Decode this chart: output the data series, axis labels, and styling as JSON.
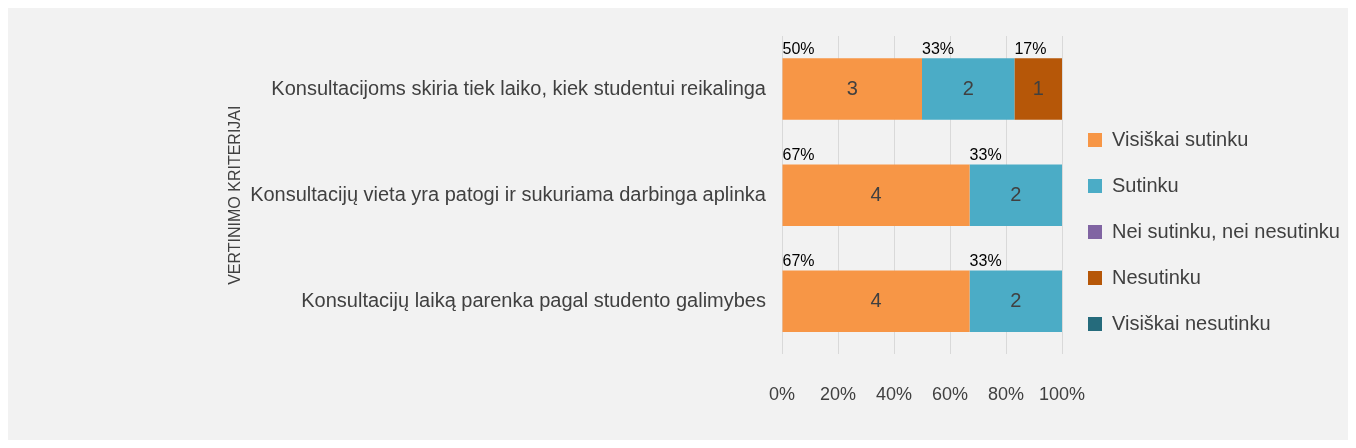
{
  "chart_data": {
    "type": "bar",
    "orientation": "horizontal",
    "stacked": true,
    "ylabel": "VERTINIMO KRITERIJAI",
    "categories": [
      "Konsultacijoms skiria tiek laiko, kiek studentui reikalinga",
      "Konsultacijų vieta yra patogi ir sukuriama darbinga aplinka",
      "Konsultacijų laiką parenka pagal studento galimybes"
    ],
    "series": [
      {
        "name": "Visiškai sutinku",
        "color": "#f79646",
        "values": [
          50,
          67,
          67
        ],
        "value_labels": [
          "50%",
          "67%",
          "67%"
        ]
      },
      {
        "name": "Sutinku",
        "color": "#4bacc6",
        "values": [
          33,
          33,
          33
        ],
        "value_labels": [
          "33%",
          "33%",
          "33%"
        ]
      },
      {
        "name": "Nei sutinku, nei nesutinku",
        "color": "#8064a2",
        "values": [
          null,
          null,
          null
        ]
      },
      {
        "name": "Nesutinku",
        "color": "#b65708",
        "values": [
          17,
          null,
          null
        ],
        "value_labels": [
          "17%",
          null,
          null
        ]
      },
      {
        "name": "Visiškai nesutinku",
        "color": "#256b7c",
        "values": [
          null,
          null,
          null
        ]
      }
    ],
    "xlim": [
      0,
      100
    ],
    "xticks": [
      {
        "value": 0,
        "label": "0%"
      },
      {
        "value": 20,
        "label": "20%"
      },
      {
        "value": 40,
        "label": "40%"
      },
      {
        "value": 60,
        "label": "60%"
      },
      {
        "value": 80,
        "label": "80%"
      },
      {
        "value": 100,
        "label": "100%"
      }
    ],
    "annotations": [
      "3",
      "2",
      "1",
      "4",
      "2",
      "4",
      "2"
    ],
    "grid": "x",
    "legend": "right"
  }
}
